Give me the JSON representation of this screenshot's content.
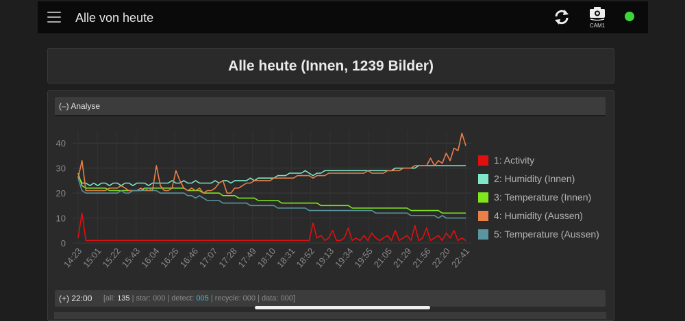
{
  "app": {
    "title": "Alle von heute",
    "camera_label": "CAM1",
    "status_color": "#3ad63a"
  },
  "icons": [
    "menu-icon",
    "refresh-icon",
    "camera-icon",
    "status-dot"
  ],
  "page_title": "Alle heute (Innen, 1239 Bilder)",
  "analyse": {
    "header_label": "(–) Analyse"
  },
  "chart_data": {
    "type": "line",
    "ylim": [
      0,
      45
    ],
    "yticks": [
      "0",
      "10",
      "20",
      "30",
      "40"
    ],
    "xticks": [
      "14:23",
      "15:01",
      "15:22",
      "15:43",
      "16:04",
      "16:25",
      "16:46",
      "17:07",
      "17:28",
      "17:49",
      "18:10",
      "18:31",
      "18:52",
      "19:13",
      "19:34",
      "19:55",
      "21:05",
      "21:29",
      "21:56",
      "22:20",
      "22:41"
    ],
    "legend_position": "right",
    "grid": true,
    "series": [
      {
        "name": "1: Activity",
        "color": "#e01010",
        "values": [
          2,
          12,
          1,
          1,
          1,
          1,
          1,
          1,
          1,
          1,
          1,
          1,
          1,
          1,
          1,
          1,
          1,
          1,
          1,
          1,
          1,
          1,
          1,
          1,
          1,
          1,
          1,
          1,
          1,
          1,
          1,
          1,
          1,
          1,
          1,
          1,
          1,
          1,
          1,
          1,
          1,
          1,
          1,
          1,
          1,
          1,
          1,
          1,
          1,
          1,
          1,
          1,
          1,
          1,
          1,
          1,
          1,
          1,
          1,
          1,
          8,
          2,
          3,
          1,
          2,
          5,
          1,
          1,
          2,
          6,
          1,
          2,
          1,
          3,
          1,
          4,
          2,
          1,
          2,
          3,
          1,
          5,
          1,
          2,
          3,
          1,
          7,
          1,
          2,
          6,
          1,
          2,
          3,
          1,
          4,
          2,
          5,
          1,
          2,
          1
        ]
      },
      {
        "name": "2: Humidity (Innen)",
        "color": "#7fe6c8",
        "values": [
          27,
          24,
          24,
          23,
          24,
          23,
          24,
          24,
          23,
          24,
          24,
          23,
          24,
          24,
          23,
          24,
          24,
          24,
          23,
          24,
          24,
          24,
          24,
          24,
          25,
          24,
          24,
          25,
          24,
          24,
          25,
          24,
          24,
          24,
          24,
          25,
          24,
          25,
          25,
          24,
          25,
          25,
          25,
          25,
          26,
          25,
          26,
          26,
          26,
          26,
          26,
          27,
          27,
          27,
          28,
          28,
          28,
          28,
          29,
          28,
          27,
          28,
          28,
          29,
          29,
          29,
          29,
          29,
          29,
          29,
          29,
          29,
          29,
          29,
          29,
          29,
          29,
          29,
          29,
          29,
          29,
          30,
          30,
          30,
          30,
          30,
          30,
          31,
          31,
          31,
          31,
          31,
          31,
          31,
          31,
          31,
          31,
          31,
          31,
          31
        ]
      },
      {
        "name": "3: Temperature (Innen)",
        "color": "#7fe61e",
        "values": [
          28,
          23,
          22,
          22,
          22,
          22,
          22,
          22,
          21,
          21,
          21,
          21,
          21,
          21,
          21,
          21,
          21,
          22,
          22,
          22,
          22,
          22,
          22,
          22,
          22,
          22,
          22,
          22,
          21,
          21,
          21,
          21,
          20,
          20,
          20,
          20,
          20,
          19,
          19,
          19,
          19,
          18,
          18,
          18,
          18,
          18,
          17,
          17,
          17,
          17,
          17,
          17,
          16,
          16,
          16,
          16,
          16,
          16,
          16,
          16,
          16,
          16,
          15,
          15,
          15,
          15,
          15,
          15,
          15,
          15,
          14,
          14,
          14,
          14,
          14,
          14,
          14,
          14,
          14,
          14,
          14,
          14,
          14,
          14,
          14,
          13,
          13,
          13,
          13,
          13,
          13,
          13,
          13,
          12,
          12,
          12,
          12,
          12,
          12,
          12
        ]
      },
      {
        "name": "4: Humidity (Aussen)",
        "color": "#e8804a",
        "values": [
          26,
          33,
          21,
          21,
          21,
          21,
          21,
          21,
          22,
          22,
          22,
          23,
          22,
          21,
          21,
          21,
          22,
          21,
          21,
          21,
          31,
          23,
          21,
          21,
          22,
          29,
          25,
          22,
          21,
          22,
          21,
          22,
          20,
          21,
          21,
          22,
          24,
          25,
          20,
          20,
          22,
          22,
          23,
          24,
          24,
          25,
          25,
          25,
          25,
          25,
          26,
          26,
          26,
          26,
          26,
          26,
          27,
          27,
          27,
          27,
          26,
          27,
          27,
          27,
          28,
          28,
          28,
          28,
          28,
          28,
          28,
          28,
          28,
          28,
          29,
          28,
          28,
          28,
          28,
          29,
          29,
          29,
          29,
          30,
          30,
          30,
          31,
          31,
          31,
          31,
          34,
          31,
          33,
          32,
          36,
          33,
          38,
          37,
          44,
          39
        ]
      },
      {
        "name": "5: Temperature (Aussen)",
        "color": "#5a95a0",
        "values": [
          26,
          21,
          20,
          20,
          20,
          20,
          20,
          20,
          20,
          20,
          20,
          21,
          20,
          20,
          21,
          21,
          21,
          21,
          22,
          21,
          21,
          20,
          20,
          20,
          20,
          20,
          20,
          20,
          19,
          19,
          18,
          19,
          18,
          17,
          17,
          17,
          17,
          16,
          16,
          16,
          16,
          16,
          16,
          16,
          15,
          15,
          15,
          15,
          15,
          15,
          15,
          14,
          14,
          14,
          14,
          14,
          14,
          14,
          14,
          13,
          13,
          13,
          13,
          13,
          13,
          13,
          13,
          13,
          13,
          13,
          13,
          13,
          13,
          13,
          13,
          13,
          12,
          12,
          12,
          12,
          12,
          12,
          12,
          12,
          12,
          11,
          11,
          11,
          11,
          11,
          11,
          11,
          10,
          11,
          10,
          10,
          10,
          10,
          10,
          10
        ]
      }
    ]
  },
  "footer": {
    "time": "(+) 22:00",
    "stats_open": "[all: ",
    "all": "135",
    "star_text": " | star: 000 | detect: ",
    "detect": "005",
    "rest_text": " | recycle: 000 | data: 000]"
  }
}
